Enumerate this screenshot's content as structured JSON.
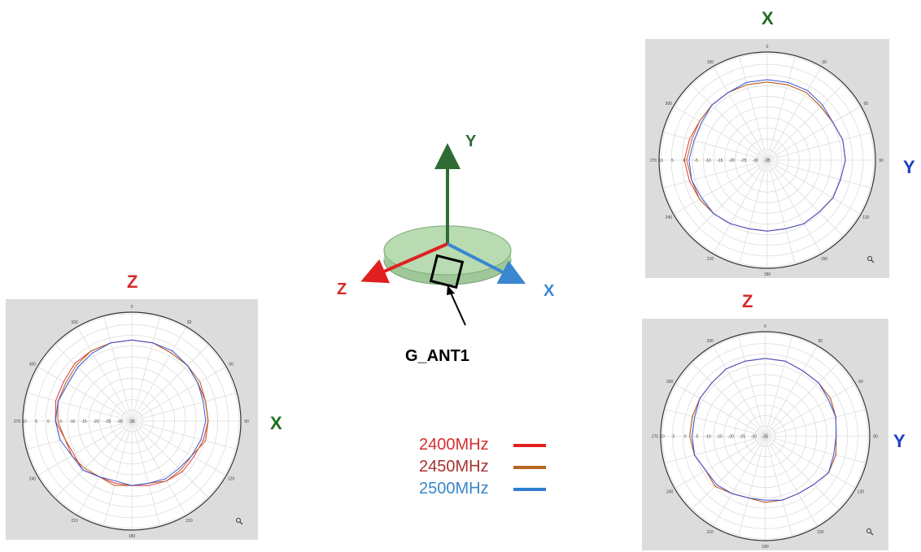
{
  "colors": {
    "s2400": "#e8323a",
    "s2450": "#b5651d",
    "s2500": "#3b55d9",
    "z_axis": "#d42a2a",
    "x_axis_diag": "#3a86d0",
    "y_axis_diag": "#2f6b33",
    "x_label_green": "#1f6e1f",
    "y_label_blue": "#1e3fbf"
  },
  "diagram": {
    "y_label": "Y",
    "z_label": "Z",
    "x_label": "X",
    "antenna_label": "G_ANT1"
  },
  "legend": [
    {
      "label": "2400MHz",
      "color": "#d63030",
      "swatch": "#e02020"
    },
    {
      "label": "2450MHz",
      "color": "#a83232",
      "swatch": "#b5651d"
    },
    {
      "label": "2500MHz",
      "color": "#3a86c8",
      "swatch": "#2f7fd0"
    }
  ],
  "panels": {
    "left": {
      "top_label": "Z",
      "side_label": "X"
    },
    "tr": {
      "top_label": "X",
      "side_label": "Y"
    },
    "br": {
      "top_label": "Z",
      "side_label": "Y"
    }
  },
  "chart_data": [
    {
      "type": "line",
      "polar": true,
      "title": "",
      "angle_ticks": [
        "0",
        "30",
        "60",
        "90",
        "120",
        "150",
        "180",
        "210",
        "240",
        "270",
        "300",
        "330"
      ],
      "radial_ticks": [
        "10",
        "5",
        "0",
        "-5",
        "-10",
        "-15",
        "-20",
        "-25",
        "-30",
        "-35"
      ],
      "rlim": [
        -35,
        10
      ],
      "angles": [
        0,
        15,
        30,
        45,
        60,
        75,
        90,
        105,
        120,
        135,
        150,
        165,
        180,
        195,
        210,
        225,
        240,
        255,
        270,
        285,
        300,
        315,
        330,
        345
      ],
      "series": [
        {
          "name": "2400MHz",
          "values": [
            -1,
            -1,
            -2,
            -2,
            -3,
            -3,
            -3,
            -4,
            -5,
            -5,
            -6,
            -7,
            -8,
            -8,
            -8,
            -6,
            -7,
            -6,
            -3,
            -2,
            -2,
            -1,
            -1,
            -1
          ]
        },
        {
          "name": "2450MHz",
          "values": [
            -1,
            -1,
            -2,
            -2,
            -2,
            -3,
            -3,
            -3,
            -6,
            -6,
            -6,
            -8,
            -8,
            -7,
            -8,
            -7,
            -6,
            -6,
            -4,
            -3,
            -3,
            -2,
            -1,
            -1
          ]
        },
        {
          "name": "2500MHz",
          "values": [
            -1,
            -1,
            -1,
            -2,
            -3,
            -4,
            -4,
            -5,
            -6,
            -7,
            -7,
            -8,
            -8,
            -9,
            -8,
            -6,
            -6,
            -4,
            -3,
            -3,
            -4,
            -3,
            -2,
            -1
          ]
        }
      ]
    },
    {
      "type": "line",
      "polar": true,
      "title": "",
      "angle_ticks": [
        "0",
        "30",
        "60",
        "90",
        "120",
        "150",
        "180",
        "210",
        "240",
        "270",
        "300",
        "330"
      ],
      "radial_ticks": [
        "10",
        "5",
        "0",
        "-5",
        "-10",
        "-15",
        "-20",
        "-25",
        "-30",
        "-35"
      ],
      "rlim": [
        -35,
        10
      ],
      "angles": [
        0,
        15,
        30,
        45,
        60,
        75,
        90,
        105,
        120,
        135,
        150,
        165,
        180,
        195,
        210,
        225,
        240,
        255,
        270,
        285,
        300,
        315,
        330,
        345
      ],
      "series": [
        {
          "name": "2400MHz",
          "values": [
            -2,
            -2,
            -2,
            -3,
            -3,
            -2,
            -2,
            -3,
            -3,
            -4,
            -4,
            -5,
            -5,
            -5,
            -4,
            -3,
            -2,
            -1,
            0,
            -1,
            -2,
            -2,
            -2,
            -2
          ]
        },
        {
          "name": "2450MHz",
          "values": [
            -2,
            -2,
            -2,
            -3,
            -3,
            -2,
            -2,
            -3,
            -3,
            -4,
            -4,
            -5,
            -5,
            -5,
            -4,
            -3,
            -2,
            -2,
            -1,
            -2,
            -2,
            -2,
            -2,
            -2
          ]
        },
        {
          "name": "2500MHz",
          "values": [
            -1,
            -1,
            -1,
            -2,
            -3,
            -2,
            -2,
            -3,
            -3,
            -4,
            -4,
            -5,
            -5,
            -5,
            -4,
            -3,
            -3,
            -2,
            -2,
            -3,
            -3,
            -2,
            -2,
            -1
          ]
        }
      ]
    },
    {
      "type": "line",
      "polar": true,
      "title": "",
      "angle_ticks": [
        "0",
        "30",
        "60",
        "90",
        "120",
        "150",
        "180",
        "210",
        "240",
        "270",
        "300",
        "330"
      ],
      "radial_ticks": [
        "10",
        "5",
        "0",
        "-5",
        "-10",
        "-15",
        "-20",
        "-25",
        "-30",
        "-35"
      ],
      "rlim": [
        -35,
        10
      ],
      "angles": [
        0,
        15,
        30,
        45,
        60,
        75,
        90,
        105,
        120,
        135,
        150,
        165,
        180,
        195,
        210,
        225,
        240,
        255,
        270,
        285,
        300,
        315,
        330,
        345
      ],
      "series": [
        {
          "name": "2400MHz",
          "values": [
            -1,
            -1,
            -2,
            -2,
            -2,
            -3,
            -4,
            -3,
            -3,
            -5,
            -6,
            -6,
            -6,
            -7,
            -6,
            -4,
            -5,
            -3,
            -2,
            -2,
            -2,
            -2,
            -1,
            -1
          ]
        },
        {
          "name": "2450MHz",
          "values": [
            -1,
            -1,
            -2,
            -2,
            -2,
            -3,
            -4,
            -3,
            -3,
            -5,
            -6,
            -6,
            -6,
            -7,
            -6,
            -4,
            -5,
            -3,
            -2,
            -2,
            -2,
            -2,
            -1,
            -1
          ]
        },
        {
          "name": "2500MHz",
          "values": [
            -1,
            -1,
            -2,
            -2,
            -3,
            -3,
            -4,
            -4,
            -3,
            -5,
            -6,
            -6,
            -7,
            -7,
            -6,
            -5,
            -5,
            -3,
            -3,
            -3,
            -2,
            -2,
            -1,
            -1
          ]
        }
      ]
    }
  ]
}
